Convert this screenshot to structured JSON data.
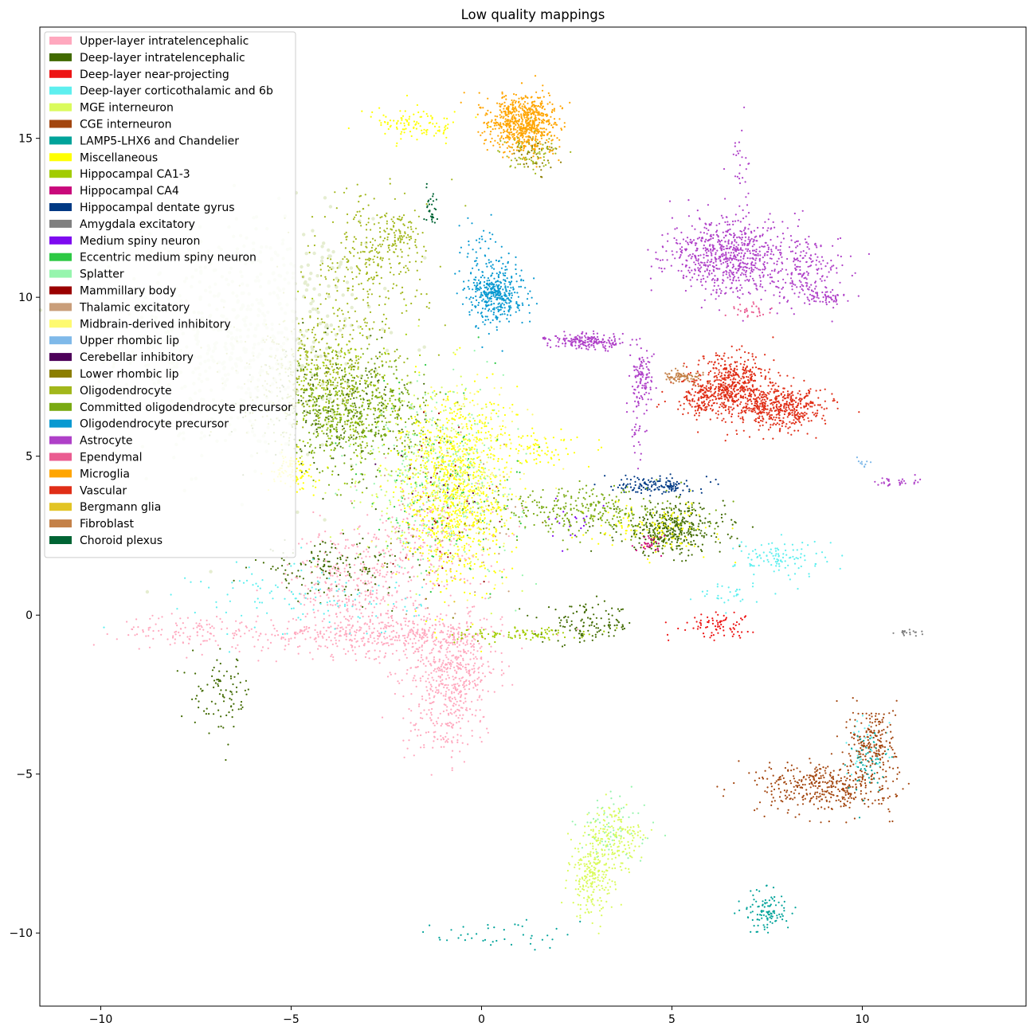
{
  "chart_data": {
    "type": "scatter",
    "title": "Low quality mappings",
    "xlabel": "",
    "ylabel": "",
    "xlim": [
      -11.6,
      14.3
    ],
    "ylim": [
      -12.3,
      18.5
    ],
    "x_ticks": [
      -10,
      -5,
      0,
      5,
      10
    ],
    "y_ticks": [
      -10,
      -5,
      0,
      5,
      10,
      15
    ],
    "x_tick_labels": [
      "−10",
      "−5",
      "0",
      "5",
      "10"
    ],
    "y_tick_labels": [
      "−10",
      "−5",
      "0",
      "5",
      "10",
      "15"
    ],
    "grid": false,
    "legend_position": "upper-left",
    "series": [
      {
        "name": "Upper-layer intratelencephalic",
        "color": "#FFA8BE",
        "clusters": [
          {
            "x": -0.8,
            "y": -1.7,
            "sx": 0.6,
            "sy": 0.8,
            "n": 450
          },
          {
            "x": -2.6,
            "y": -0.6,
            "sx": 1.6,
            "sy": 0.35,
            "n": 420
          },
          {
            "x": -3.5,
            "y": 1.0,
            "sx": 0.8,
            "sy": 0.9,
            "n": 300
          },
          {
            "x": -1.5,
            "y": 2.2,
            "sx": 0.9,
            "sy": 1.0,
            "n": 250
          },
          {
            "x": -7.5,
            "y": -0.5,
            "sx": 1.0,
            "sy": 0.25,
            "n": 120
          },
          {
            "x": -1.0,
            "y": -3.5,
            "sx": 0.5,
            "sy": 0.6,
            "n": 120
          }
        ]
      },
      {
        "name": "Deep-layer intratelencephalic",
        "color": "#416A00",
        "clusters": [
          {
            "x": 5.0,
            "y": 2.7,
            "sx": 0.7,
            "sy": 0.4,
            "n": 400
          },
          {
            "x": -4.0,
            "y": 1.5,
            "sx": 1.0,
            "sy": 0.4,
            "n": 150
          },
          {
            "x": 2.8,
            "y": -0.3,
            "sx": 0.6,
            "sy": 0.3,
            "n": 120
          },
          {
            "x": -6.8,
            "y": -2.5,
            "sx": 0.4,
            "sy": 0.6,
            "n": 90
          },
          {
            "x": -3.8,
            "y": 6.5,
            "sx": 1.0,
            "sy": 0.9,
            "n": 250
          }
        ]
      },
      {
        "name": "Deep-layer near-projecting",
        "color": "#ED1515",
        "clusters": [
          {
            "x": 6.1,
            "y": -0.3,
            "sx": 0.5,
            "sy": 0.2,
            "n": 80
          }
        ]
      },
      {
        "name": "Deep-layer corticothalamic and 6b",
        "color": "#5EEFEF",
        "clusters": [
          {
            "x": 7.9,
            "y": 1.8,
            "sx": 0.6,
            "sy": 0.3,
            "n": 110
          },
          {
            "x": -4.5,
            "y": 0.5,
            "sx": 1.5,
            "sy": 0.6,
            "n": 120
          },
          {
            "x": 6.5,
            "y": 0.6,
            "sx": 0.4,
            "sy": 0.2,
            "n": 30
          },
          {
            "x": 10.1,
            "y": -4.2,
            "sx": 0.3,
            "sy": 0.5,
            "n": 40
          }
        ]
      },
      {
        "name": "MGE interneuron",
        "color": "#DAFB5C",
        "clusters": [
          {
            "x": 2.9,
            "y": -8.3,
            "sx": 0.3,
            "sy": 0.6,
            "n": 220
          },
          {
            "x": 3.5,
            "y": -7.0,
            "sx": 0.4,
            "sy": 0.5,
            "n": 180
          },
          {
            "x": -1.5,
            "y": 4.5,
            "sx": 1.1,
            "sy": 1.5,
            "n": 250
          }
        ]
      },
      {
        "name": "CGE interneuron",
        "color": "#A3460F",
        "clusters": [
          {
            "x": 9.0,
            "y": -5.4,
            "sx": 0.9,
            "sy": 0.4,
            "n": 400
          },
          {
            "x": 10.3,
            "y": -4.0,
            "sx": 0.3,
            "sy": 0.6,
            "n": 200
          }
        ]
      },
      {
        "name": "LAMP5-LHX6 and Chandelier",
        "color": "#00A39A",
        "clusters": [
          {
            "x": 7.5,
            "y": -9.3,
            "sx": 0.3,
            "sy": 0.35,
            "n": 110
          },
          {
            "x": 0.4,
            "y": -10.1,
            "sx": 0.8,
            "sy": 0.25,
            "n": 40
          },
          {
            "x": 10.1,
            "y": -4.6,
            "sx": 0.25,
            "sy": 0.5,
            "n": 50
          }
        ]
      },
      {
        "name": "Miscellaneous",
        "color": "#FFFF00",
        "clusters": [
          {
            "x": -0.7,
            "y": 4.0,
            "sx": 0.7,
            "sy": 1.5,
            "n": 900
          },
          {
            "x": -1.7,
            "y": 15.4,
            "sx": 0.6,
            "sy": 0.25,
            "n": 110
          },
          {
            "x": -5.0,
            "y": 4.5,
            "sx": 0.3,
            "sy": 0.3,
            "n": 100
          },
          {
            "x": 1.5,
            "y": 5.3,
            "sx": 0.5,
            "sy": 0.3,
            "n": 80
          },
          {
            "x": 4.5,
            "y": 2.8,
            "sx": 0.8,
            "sy": 0.4,
            "n": 120
          }
        ]
      },
      {
        "name": "Hippocampal CA1-3",
        "color": "#A2CC00",
        "clusters": [
          {
            "x": -3.6,
            "y": 6.7,
            "sx": 1.0,
            "sy": 1.1,
            "n": 200
          },
          {
            "x": 1.0,
            "y": -0.6,
            "sx": 0.9,
            "sy": 0.1,
            "n": 100
          }
        ]
      },
      {
        "name": "Hippocampal CA4",
        "color": "#C9097B",
        "clusters": [
          {
            "x": 4.4,
            "y": 2.2,
            "sx": 0.2,
            "sy": 0.15,
            "n": 30
          }
        ]
      },
      {
        "name": "Hippocampal dentate gyrus",
        "color": "#003984",
        "clusters": [
          {
            "x": 4.6,
            "y": 4.1,
            "sx": 0.5,
            "sy": 0.15,
            "n": 140
          }
        ]
      },
      {
        "name": "Amygdala excitatory",
        "color": "#808080",
        "clusters": [
          {
            "x": 11.2,
            "y": -0.55,
            "sx": 0.2,
            "sy": 0.05,
            "n": 20
          }
        ]
      },
      {
        "name": "Medium spiny neuron",
        "color": "#7D0AF0",
        "clusters": [
          {
            "x": 2.5,
            "y": 3.0,
            "sx": 0.4,
            "sy": 0.3,
            "n": 20
          }
        ]
      },
      {
        "name": "Eccentric medium spiny neuron",
        "color": "#2DC944",
        "clusters": [
          {
            "x": -1.0,
            "y": 4.0,
            "sx": 1.0,
            "sy": 1.5,
            "n": 100
          }
        ]
      },
      {
        "name": "Splatter",
        "color": "#96F5AD",
        "clusters": [
          {
            "x": -1.0,
            "y": 4.5,
            "sx": 1.0,
            "sy": 1.4,
            "n": 300
          },
          {
            "x": 3.5,
            "y": -6.8,
            "sx": 0.5,
            "sy": 0.6,
            "n": 60
          }
        ]
      },
      {
        "name": "Mammillary body",
        "color": "#9A0000",
        "clusters": [
          {
            "x": -1.0,
            "y": 3.5,
            "sx": 1.0,
            "sy": 1.5,
            "n": 30
          }
        ]
      },
      {
        "name": "Thalamic excitatory",
        "color": "#C99E7A",
        "clusters": [
          {
            "x": -0.8,
            "y": 3.0,
            "sx": 1.0,
            "sy": 1.5,
            "n": 40
          }
        ]
      },
      {
        "name": "Midbrain-derived inhibitory",
        "color": "#FEFA70",
        "clusters": [
          {
            "x": -0.3,
            "y": 4.5,
            "sx": 0.8,
            "sy": 1.4,
            "n": 250
          }
        ]
      },
      {
        "name": "Upper rhombic lip",
        "color": "#7FB9E9",
        "clusters": [
          {
            "x": 10.0,
            "y": 4.8,
            "sx": 0.1,
            "sy": 0.1,
            "n": 10
          }
        ]
      },
      {
        "name": "Cerebellar inhibitory",
        "color": "#4D0059",
        "clusters": [
          {
            "x": -1.0,
            "y": 4.0,
            "sx": 0.9,
            "sy": 1.3,
            "n": 15
          }
        ]
      },
      {
        "name": "Lower rhombic lip",
        "color": "#8C7E00",
        "clusters": [
          {
            "x": 1.4,
            "y": 14.5,
            "sx": 0.3,
            "sy": 0.3,
            "n": 50
          },
          {
            "x": -0.8,
            "y": 3.0,
            "sx": 0.9,
            "sy": 1.3,
            "n": 20
          }
        ]
      },
      {
        "name": "Oligodendrocyte",
        "color": "#A2B71B",
        "clusters": [
          {
            "x": -3.0,
            "y": 11.0,
            "sx": 0.8,
            "sy": 1.1,
            "n": 300
          },
          {
            "x": -4.2,
            "y": 7.5,
            "sx": 1.0,
            "sy": 0.9,
            "n": 400
          },
          {
            "x": -2.3,
            "y": 12.0,
            "sx": 0.3,
            "sy": 0.4,
            "n": 80
          },
          {
            "x": 1.3,
            "y": 14.7,
            "sx": 0.4,
            "sy": 0.3,
            "n": 80
          }
        ]
      },
      {
        "name": "Committed oligodendrocyte precursor",
        "color": "#79AA12",
        "clusters": [
          {
            "x": -3.4,
            "y": 6.3,
            "sx": 1.0,
            "sy": 0.9,
            "n": 500
          },
          {
            "x": 2.8,
            "y": 3.3,
            "sx": 1.3,
            "sy": 0.4,
            "n": 300
          }
        ]
      },
      {
        "name": "Oligodendrocyte precursor",
        "color": "#0899D1",
        "clusters": [
          {
            "x": 0.4,
            "y": 10.1,
            "sx": 0.35,
            "sy": 0.45,
            "n": 400
          },
          {
            "x": 0.0,
            "y": 11.5,
            "sx": 0.3,
            "sy": 0.5,
            "n": 40
          }
        ]
      },
      {
        "name": "Astrocyte",
        "color": "#AF40C8",
        "clusters": [
          {
            "x": 6.5,
            "y": 11.3,
            "sx": 0.8,
            "sy": 0.6,
            "n": 700
          },
          {
            "x": 8.5,
            "y": 10.8,
            "sx": 0.6,
            "sy": 0.5,
            "n": 180
          },
          {
            "x": 9.0,
            "y": 10.0,
            "sx": 0.3,
            "sy": 0.1,
            "n": 60
          },
          {
            "x": 2.8,
            "y": 8.6,
            "sx": 0.5,
            "sy": 0.12,
            "n": 200
          },
          {
            "x": 4.2,
            "y": 7.5,
            "sx": 0.15,
            "sy": 0.4,
            "n": 100
          },
          {
            "x": 4.1,
            "y": 6.0,
            "sx": 0.1,
            "sy": 1.0,
            "n": 40
          },
          {
            "x": 10.9,
            "y": 4.2,
            "sx": 0.3,
            "sy": 0.08,
            "n": 30
          },
          {
            "x": 6.8,
            "y": 14.0,
            "sx": 0.15,
            "sy": 0.8,
            "n": 30
          }
        ]
      },
      {
        "name": "Ependymal",
        "color": "#EA5C91",
        "clusters": [
          {
            "x": 7.0,
            "y": 9.6,
            "sx": 0.3,
            "sy": 0.12,
            "n": 30
          }
        ]
      },
      {
        "name": "Microglia",
        "color": "#FFA500",
        "clusters": [
          {
            "x": 1.1,
            "y": 15.5,
            "sx": 0.45,
            "sy": 0.45,
            "n": 700
          }
        ]
      },
      {
        "name": "Vascular",
        "color": "#E02E17",
        "clusters": [
          {
            "x": 6.6,
            "y": 7.2,
            "sx": 0.5,
            "sy": 0.5,
            "n": 500
          },
          {
            "x": 7.9,
            "y": 6.5,
            "sx": 0.6,
            "sy": 0.35,
            "n": 450
          },
          {
            "x": 5.8,
            "y": 6.8,
            "sx": 0.4,
            "sy": 0.3,
            "n": 150
          }
        ]
      },
      {
        "name": "Bergmann glia",
        "color": "#E2C424",
        "clusters": [
          {
            "x": -1.0,
            "y": 4.0,
            "sx": 0.9,
            "sy": 1.3,
            "n": 30
          }
        ]
      },
      {
        "name": "Fibroblast",
        "color": "#C48148",
        "clusters": [
          {
            "x": 5.3,
            "y": 7.5,
            "sx": 0.3,
            "sy": 0.1,
            "n": 80
          }
        ]
      },
      {
        "name": "Choroid plexus",
        "color": "#006434",
        "clusters": [
          {
            "x": -1.3,
            "y": 12.8,
            "sx": 0.1,
            "sy": 0.3,
            "n": 30
          }
        ]
      }
    ],
    "background_cloud": {
      "color": "#E5EDD0",
      "x": -6.3,
      "y": 8.7,
      "sx": 1.6,
      "sy": 1.9,
      "n": 700
    }
  }
}
